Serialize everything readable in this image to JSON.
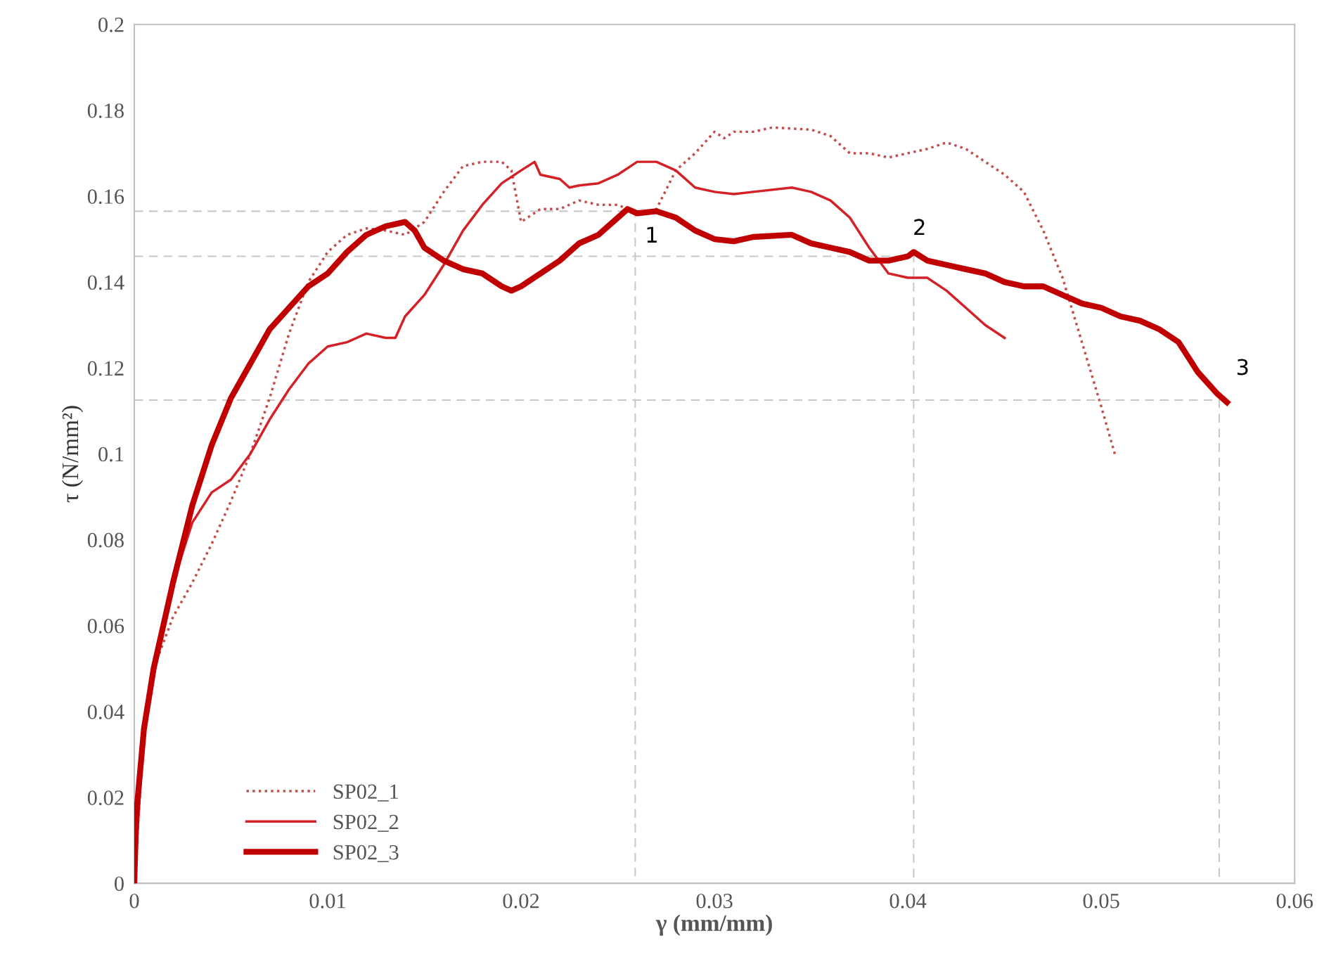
{
  "chart_data": {
    "type": "line",
    "xlabel": "γ (mm/mm)",
    "ylabel": "τ (N/mm²)",
    "xlim": [
      0,
      0.06
    ],
    "xticks": [
      0,
      0.01,
      0.02,
      0.03,
      0.04,
      0.05,
      0.06
    ],
    "ylim": [
      0,
      0.2
    ],
    "yticks": [
      0,
      0.02,
      0.04,
      0.06,
      0.08,
      0.1,
      0.12,
      0.14,
      0.16,
      0.18,
      0.2
    ],
    "grid": false,
    "legend": "bottom left",
    "marker": "none",
    "series": [
      {
        "name": "SP02_1",
        "color": "#c0504d",
        "line_style": "dotted",
        "x": [
          0,
          0.0005,
          0.001,
          0.002,
          0.003,
          0.004,
          0.005,
          0.006,
          0.007,
          0.008,
          0.009,
          0.01,
          0.011,
          0.012,
          0.013,
          0.014,
          0.015,
          0.016,
          0.017,
          0.018,
          0.019,
          0.0195,
          0.02,
          0.021,
          0.022,
          0.023,
          0.024,
          0.025,
          0.026,
          0.027,
          0.028,
          0.029,
          0.03,
          0.0305,
          0.031,
          0.032,
          0.033,
          0.035,
          0.036,
          0.037,
          0.038,
          0.039,
          0.04,
          0.041,
          0.042,
          0.043,
          0.044,
          0.045,
          0.046,
          0.047,
          0.048,
          0.049,
          0.05,
          0.0507
        ],
        "values": [
          0,
          0.036,
          0.05,
          0.062,
          0.07,
          0.079,
          0.089,
          0.1,
          0.113,
          0.128,
          0.14,
          0.147,
          0.151,
          0.1525,
          0.152,
          0.151,
          0.154,
          0.161,
          0.167,
          0.168,
          0.168,
          0.166,
          0.154,
          0.157,
          0.157,
          0.159,
          0.158,
          0.158,
          0.156,
          0.157,
          0.166,
          0.17,
          0.175,
          0.1735,
          0.175,
          0.175,
          0.176,
          0.1755,
          0.174,
          0.17,
          0.17,
          0.169,
          0.17,
          0.171,
          0.1725,
          0.171,
          0.168,
          0.165,
          0.161,
          0.152,
          0.141,
          0.126,
          0.111,
          0.1
        ]
      },
      {
        "name": "SP02_2",
        "color": "#d42027",
        "line_style": "solid",
        "x": [
          0,
          0.0005,
          0.001,
          0.002,
          0.003,
          0.004,
          0.005,
          0.006,
          0.007,
          0.008,
          0.009,
          0.01,
          0.011,
          0.012,
          0.013,
          0.0135,
          0.014,
          0.015,
          0.016,
          0.017,
          0.018,
          0.019,
          0.02,
          0.0207,
          0.021,
          0.022,
          0.0225,
          0.023,
          0.024,
          0.025,
          0.026,
          0.027,
          0.028,
          0.029,
          0.03,
          0.031,
          0.032,
          0.034,
          0.035,
          0.036,
          0.037,
          0.038,
          0.039,
          0.04,
          0.041,
          0.042,
          0.043,
          0.044,
          0.045
        ],
        "values": [
          0,
          0.036,
          0.05,
          0.07,
          0.084,
          0.091,
          0.094,
          0.1,
          0.108,
          0.115,
          0.121,
          0.125,
          0.126,
          0.128,
          0.127,
          0.127,
          0.132,
          0.137,
          0.144,
          0.152,
          0.158,
          0.163,
          0.166,
          0.168,
          0.165,
          0.164,
          0.162,
          0.1625,
          0.163,
          0.165,
          0.168,
          0.168,
          0.166,
          0.162,
          0.161,
          0.1605,
          0.161,
          0.162,
          0.161,
          0.159,
          0.155,
          0.148,
          0.142,
          0.141,
          0.141,
          0.138,
          0.134,
          0.13,
          0.127
        ]
      },
      {
        "name": "SP02_3",
        "color": "#c00000",
        "line_style": "solid",
        "x": [
          0,
          0.0001,
          0.0005,
          0.001,
          0.002,
          0.003,
          0.004,
          0.005,
          0.006,
          0.007,
          0.008,
          0.009,
          0.01,
          0.011,
          0.012,
          0.013,
          0.014,
          0.0145,
          0.015,
          0.016,
          0.017,
          0.018,
          0.019,
          0.0195,
          0.02,
          0.021,
          0.022,
          0.023,
          0.024,
          0.025,
          0.0255,
          0.026,
          0.027,
          0.028,
          0.029,
          0.03,
          0.031,
          0.032,
          0.034,
          0.035,
          0.036,
          0.037,
          0.038,
          0.039,
          0.04,
          0.0403,
          0.041,
          0.042,
          0.043,
          0.044,
          0.045,
          0.046,
          0.047,
          0.048,
          0.049,
          0.05,
          0.051,
          0.052,
          0.053,
          0.054,
          0.055,
          0.056,
          0.0565
        ],
        "values": [
          0,
          0.016,
          0.036,
          0.05,
          0.07,
          0.088,
          0.102,
          0.113,
          0.121,
          0.129,
          0.134,
          0.139,
          0.142,
          0.147,
          0.151,
          0.153,
          0.154,
          0.152,
          0.148,
          0.145,
          0.143,
          0.142,
          0.139,
          0.138,
          0.139,
          0.142,
          0.145,
          0.149,
          0.151,
          0.155,
          0.157,
          0.156,
          0.1565,
          0.155,
          0.152,
          0.15,
          0.1495,
          0.1505,
          0.151,
          0.149,
          0.148,
          0.147,
          0.145,
          0.145,
          0.146,
          0.147,
          0.145,
          0.144,
          0.143,
          0.142,
          0.14,
          0.139,
          0.139,
          0.137,
          0.135,
          0.134,
          0.132,
          0.131,
          0.129,
          0.126,
          0.119,
          0.114,
          0.112
        ]
      },
      {
        "color": "#c8c8c8",
        "line_style": "dashed",
        "x": [
          0,
          0.0259,
          0.0259
        ],
        "values": [
          0.1565,
          0.1565,
          0
        ]
      },
      {
        "color": "#c8c8c8",
        "line_style": "dashed",
        "x": [
          0,
          0.0403,
          0.0403
        ],
        "values": [
          0.146,
          0.146,
          0
        ]
      },
      {
        "color": "#c8c8c8",
        "line_style": "dashed",
        "x": [
          0,
          0.0561,
          0.0561
        ],
        "values": [
          0.1125,
          0.1125,
          0
        ]
      }
    ],
    "annotations": [
      {
        "text": "1",
        "x": 0.0259,
        "y": 0.1565
      },
      {
        "text": "2",
        "x": 0.0403,
        "y": 0.146
      },
      {
        "text": "3",
        "x": 0.0561,
        "y": 0.1125
      }
    ]
  }
}
